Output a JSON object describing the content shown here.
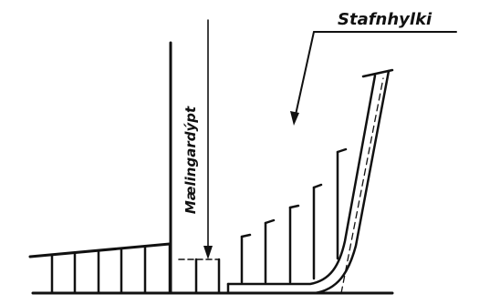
{
  "labels": {
    "keel_slope": "Stafnhylki",
    "measuring_depth": "Mælingardýpt"
  },
  "colors": {
    "ink": "#111111",
    "paper": "#ffffff"
  }
}
